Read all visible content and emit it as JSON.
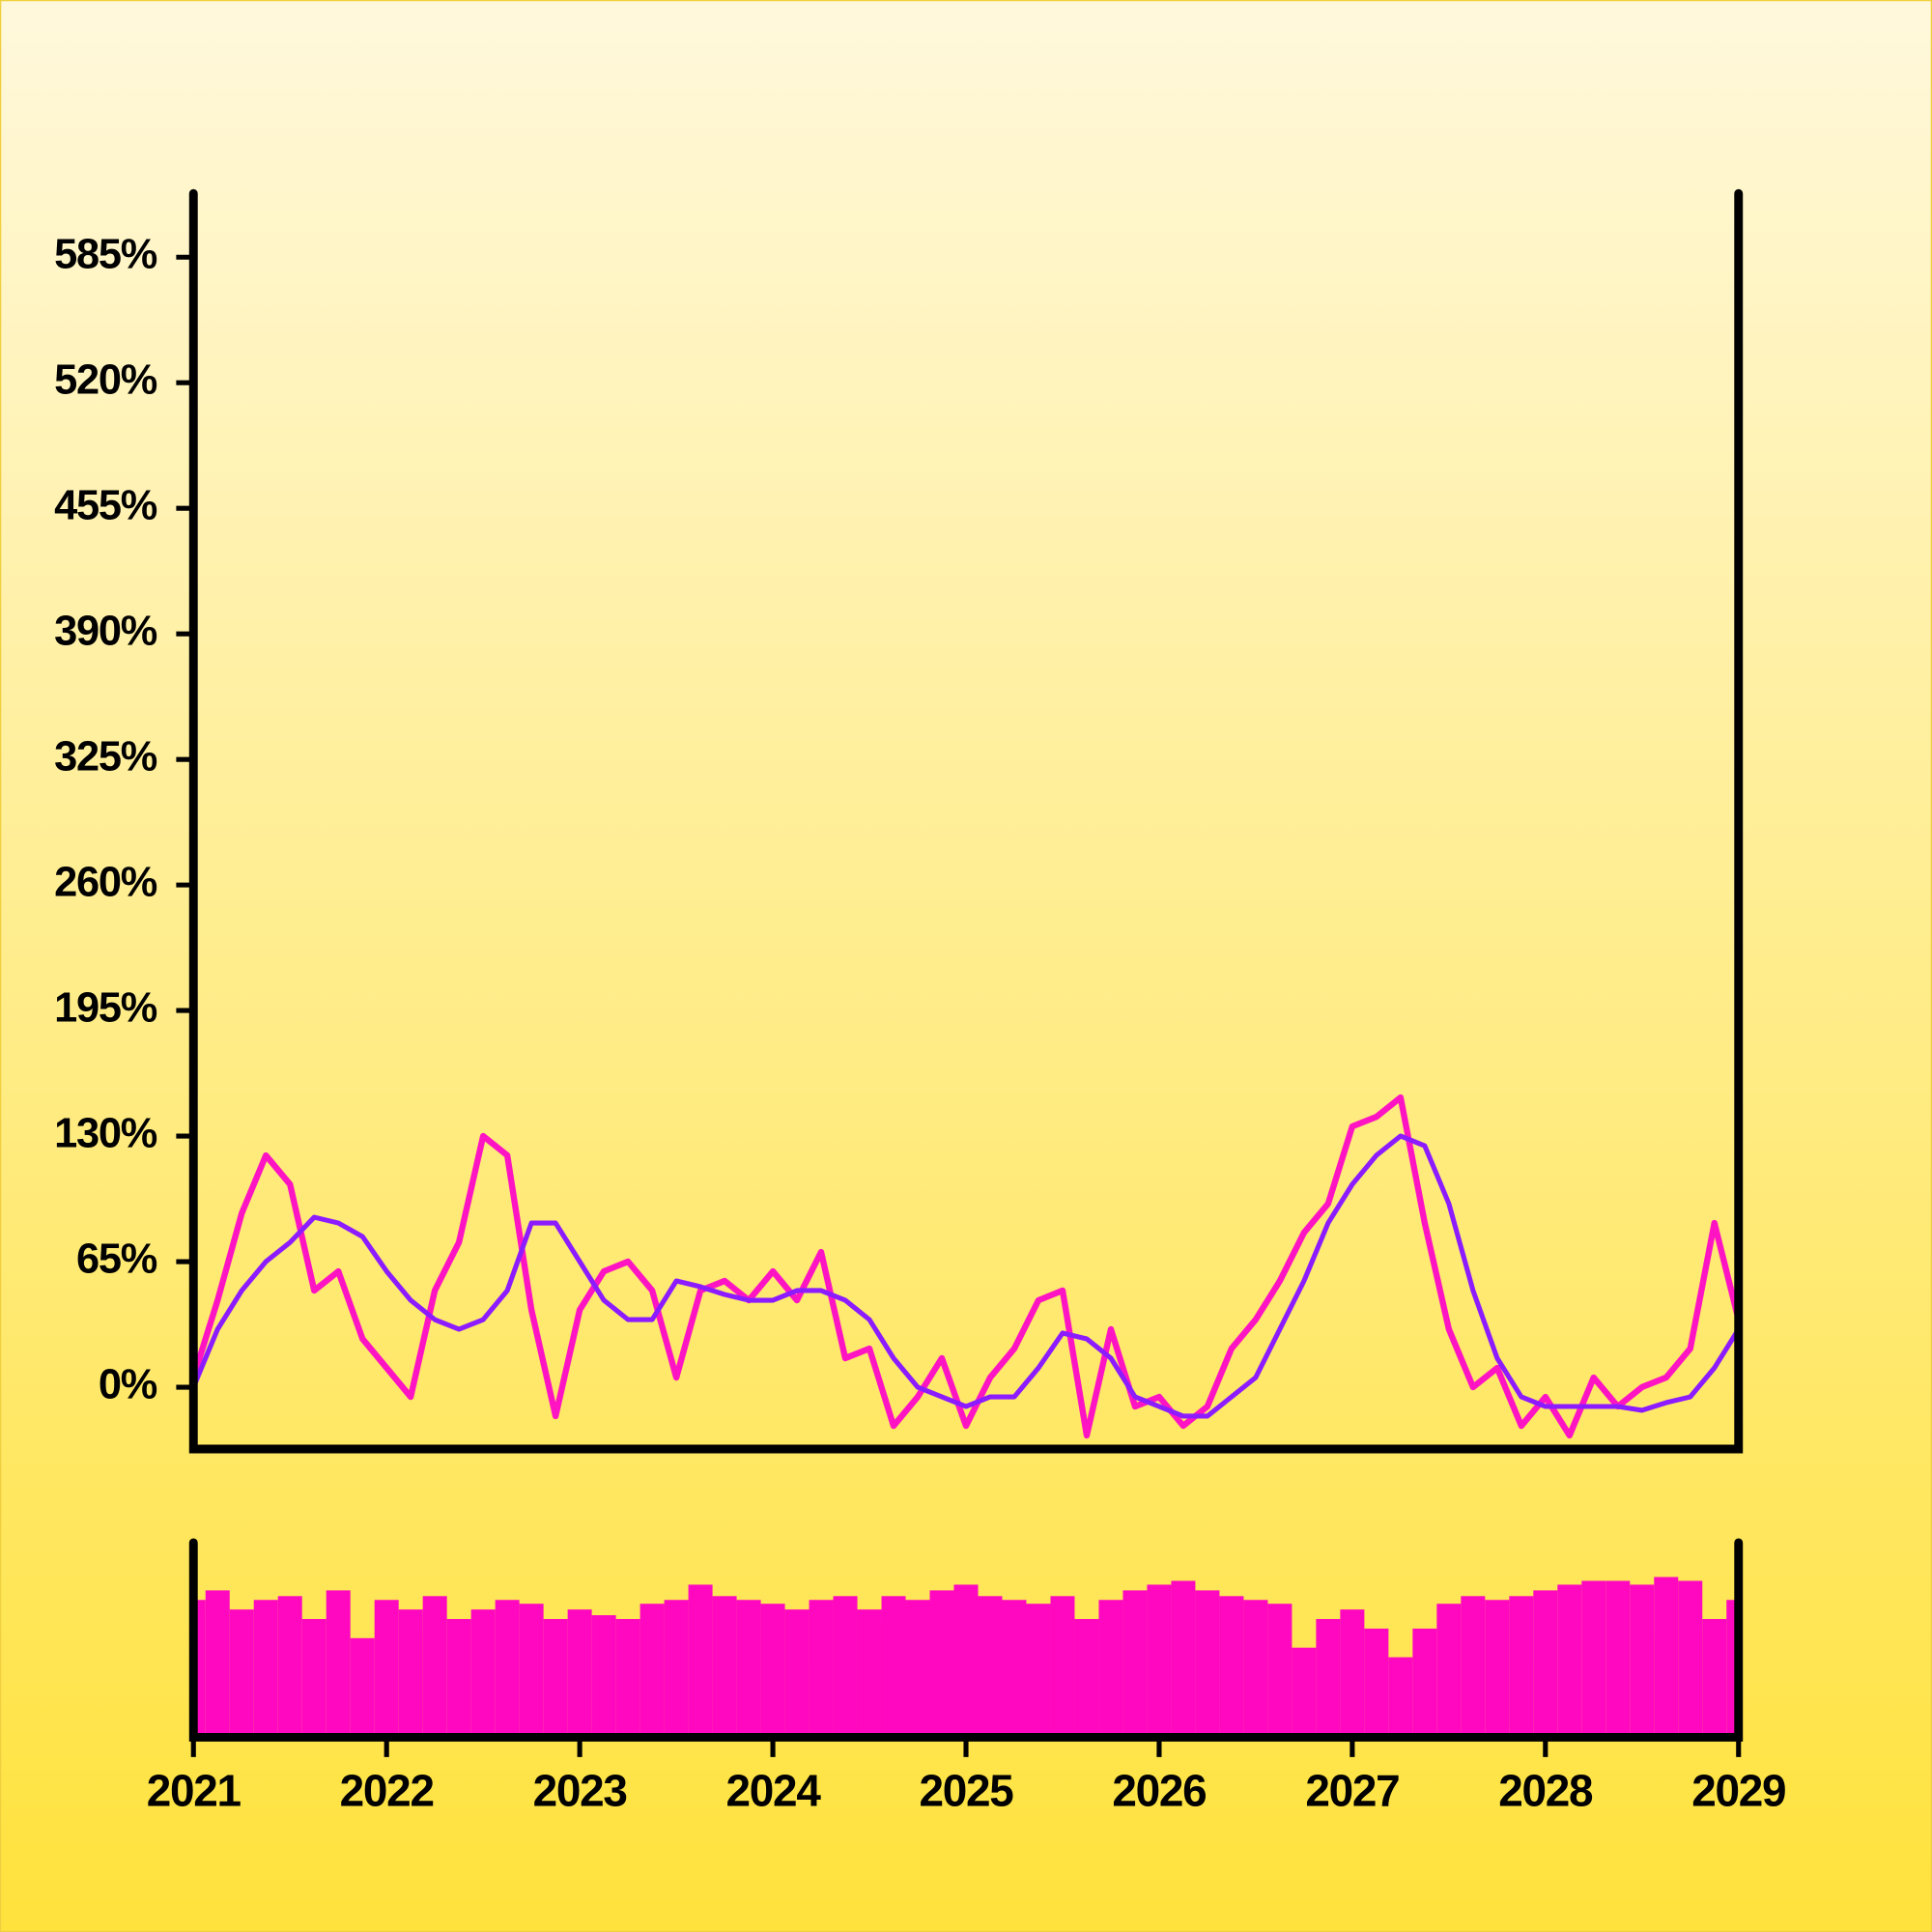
{
  "chart_data": [
    {
      "type": "line",
      "x": [
        2021,
        2021.125,
        2021.25,
        2021.375,
        2021.5,
        2021.625,
        2021.75,
        2021.875,
        2022,
        2022.125,
        2022.25,
        2022.375,
        2022.5,
        2022.625,
        2022.75,
        2022.875,
        2023,
        2023.125,
        2023.25,
        2023.375,
        2023.5,
        2023.625,
        2023.75,
        2023.875,
        2024,
        2024.125,
        2024.25,
        2024.375,
        2024.5,
        2024.625,
        2024.75,
        2024.875,
        2025,
        2025.125,
        2025.25,
        2025.375,
        2025.5,
        2025.625,
        2025.75,
        2025.875,
        2026,
        2026.125,
        2026.25,
        2026.375,
        2026.5,
        2026.625,
        2026.75,
        2026.875,
        2027,
        2027.125,
        2027.25,
        2027.375,
        2027.5,
        2027.625,
        2027.75,
        2027.875,
        2028,
        2028.125,
        2028.25,
        2028.375,
        2028.5,
        2028.625,
        2028.75,
        2028.875,
        2029
      ],
      "series": [
        {
          "color": "#ff14c4",
          "width": 5,
          "values": [
            5,
            45,
            90,
            120,
            105,
            50,
            60,
            25,
            10,
            -5,
            50,
            75,
            130,
            120,
            40,
            -15,
            40,
            60,
            65,
            50,
            5,
            50,
            55,
            45,
            60,
            45,
            70,
            15,
            20,
            -20,
            -5,
            15,
            -20,
            5,
            20,
            45,
            50,
            -25,
            30,
            -10,
            -5,
            -20,
            -10,
            20,
            35,
            55,
            80,
            95,
            135,
            140,
            150,
            85,
            30,
            0,
            10,
            -20,
            -5,
            -25,
            5,
            -10,
            0,
            5,
            20,
            85,
            35
          ]
        },
        {
          "color": "#8c1cff",
          "width": 4,
          "values": [
            0,
            30,
            50,
            65,
            75,
            88,
            85,
            78,
            60,
            45,
            35,
            30,
            35,
            50,
            85,
            85,
            65,
            45,
            35,
            35,
            55,
            52,
            48,
            45,
            45,
            50,
            50,
            45,
            35,
            15,
            0,
            -5,
            -10,
            -5,
            -5,
            10,
            28,
            25,
            15,
            -5,
            -10,
            -15,
            -15,
            -5,
            5,
            30,
            55,
            85,
            105,
            120,
            130,
            125,
            95,
            50,
            15,
            -5,
            -10,
            -10,
            -10,
            -10,
            -12,
            -8,
            -5,
            10,
            30
          ]
        }
      ],
      "xlim": [
        2021,
        2029
      ],
      "xticks": [
        2021,
        2022,
        2023,
        2024,
        2025,
        2026,
        2027,
        2028,
        2029
      ],
      "ylim": [
        -32,
        618
      ],
      "yticks": [
        {
          "value": 0,
          "label": "0%"
        },
        {
          "value": 65,
          "label": "65%"
        },
        {
          "value": 130,
          "label": "130%"
        },
        {
          "value": 195,
          "label": "195%"
        },
        {
          "value": 260,
          "label": "260%"
        },
        {
          "value": 325,
          "label": "325%"
        },
        {
          "value": 390,
          "label": "390%"
        },
        {
          "value": 455,
          "label": "455%"
        },
        {
          "value": 520,
          "label": "520%"
        },
        {
          "value": 585,
          "label": "585%"
        }
      ]
    },
    {
      "type": "bar",
      "x": [
        2021,
        2021.125,
        2021.25,
        2021.375,
        2021.5,
        2021.625,
        2021.75,
        2021.875,
        2022,
        2022.125,
        2022.25,
        2022.375,
        2022.5,
        2022.625,
        2022.75,
        2022.875,
        2023,
        2023.125,
        2023.25,
        2023.375,
        2023.5,
        2023.625,
        2023.75,
        2023.875,
        2024,
        2024.125,
        2024.25,
        2024.375,
        2024.5,
        2024.625,
        2024.75,
        2024.875,
        2025,
        2025.125,
        2025.25,
        2025.375,
        2025.5,
        2025.625,
        2025.75,
        2025.875,
        2026,
        2026.125,
        2026.25,
        2026.375,
        2026.5,
        2026.625,
        2026.75,
        2026.875,
        2027,
        2027.125,
        2027.25,
        2027.375,
        2027.5,
        2027.625,
        2027.75,
        2027.875,
        2028,
        2028.125,
        2028.25,
        2028.375,
        2028.5,
        2028.625,
        2028.75,
        2028.875,
        2029
      ],
      "color": "#ff08c0",
      "values": [
        70,
        75,
        65,
        70,
        72,
        60,
        75,
        50,
        70,
        65,
        72,
        60,
        65,
        70,
        68,
        60,
        65,
        62,
        60,
        68,
        70,
        78,
        72,
        70,
        68,
        65,
        70,
        72,
        65,
        72,
        70,
        75,
        78,
        72,
        70,
        68,
        72,
        60,
        70,
        75,
        78,
        80,
        75,
        72,
        70,
        68,
        45,
        60,
        65,
        55,
        40,
        55,
        68,
        72,
        70,
        72,
        75,
        78,
        80,
        80,
        78,
        82,
        80,
        60,
        70
      ],
      "xlim": [
        2021,
        2029
      ],
      "ylim": [
        0,
        100
      ]
    }
  ]
}
